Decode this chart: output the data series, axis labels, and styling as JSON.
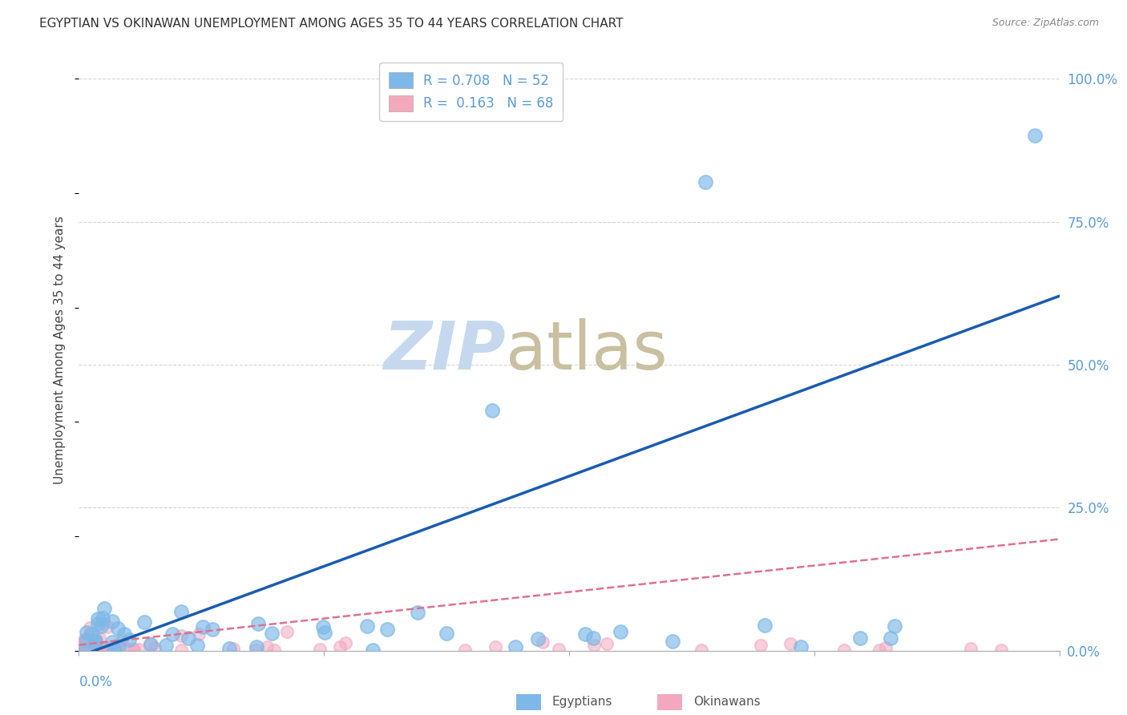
{
  "title": "EGYPTIAN VS OKINAWAN UNEMPLOYMENT AMONG AGES 35 TO 44 YEARS CORRELATION CHART",
  "source": "Source: ZipAtlas.com",
  "ylabel": "Unemployment Among Ages 35 to 44 years",
  "ytick_labels": [
    "0.0%",
    "25.0%",
    "50.0%",
    "75.0%",
    "100.0%"
  ],
  "ytick_values": [
    0.0,
    0.25,
    0.5,
    0.75,
    1.0
  ],
  "xmin": 0.0,
  "xmax": 0.2,
  "ymin": 0.0,
  "ymax": 1.05,
  "eg_R": 0.708,
  "eg_N": 52,
  "ok_R": 0.163,
  "ok_N": 68,
  "egyptian_color": "#7db8e8",
  "okinawan_color": "#f4a8be",
  "egyptian_line_color": "#1a5cb0",
  "okinawan_line_color": "#e07090",
  "background_color": "#ffffff",
  "grid_color": "#cccccc",
  "title_color": "#333333",
  "tick_color": "#5b9bd5",
  "watermark_zip_color": "#c5d8ee",
  "watermark_atlas_color": "#c8c0a0",
  "eg_line_x0": 0.0,
  "eg_line_y0": -0.01,
  "eg_line_x1": 0.2,
  "eg_line_y1": 0.62,
  "ok_line_x0": 0.0,
  "ok_line_y0": 0.01,
  "ok_line_x1": 0.2,
  "ok_line_y1": 0.195
}
